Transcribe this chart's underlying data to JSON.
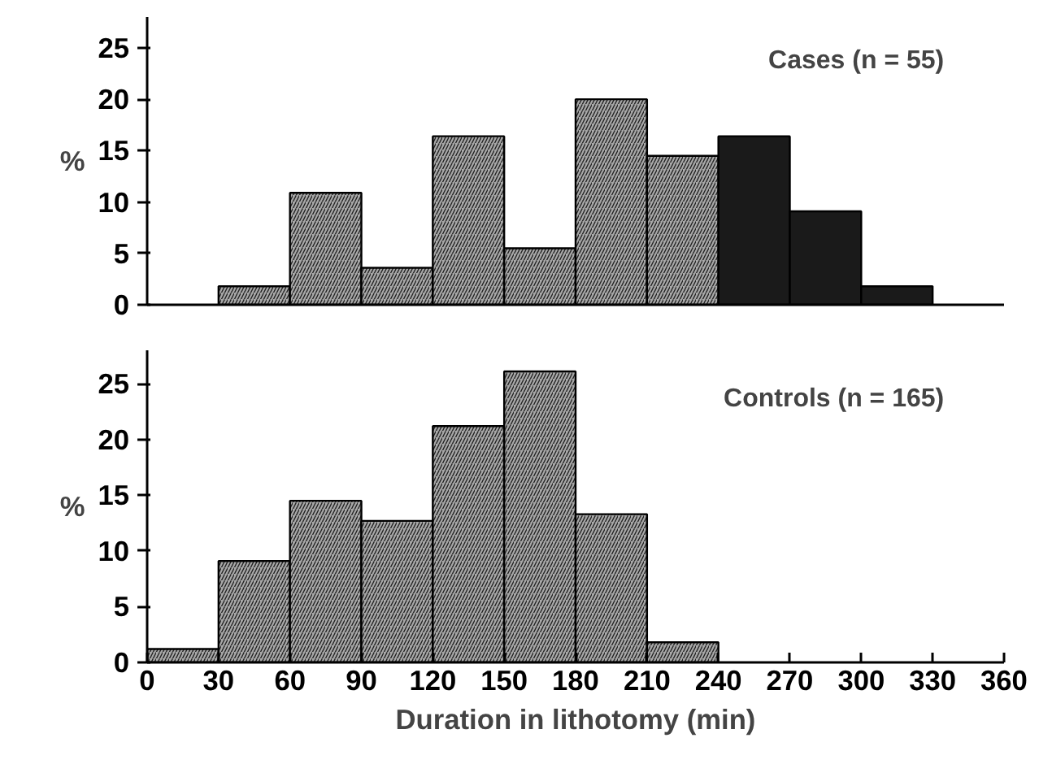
{
  "chart_data": [
    {
      "type": "histogram",
      "bins": [
        0,
        30,
        60,
        90,
        120,
        150,
        180,
        210,
        240,
        270,
        300,
        330,
        360
      ],
      "values": [
        0,
        1.8,
        10.9,
        3.6,
        16.4,
        5.5,
        20.0,
        14.5,
        16.4,
        9.1,
        1.8,
        0
      ],
      "colors": [
        "#a8a8a8",
        "#a8a8a8",
        "#a8a8a8",
        "#a8a8a8",
        "#a8a8a8",
        "#a8a8a8",
        "#a8a8a8",
        "#a8a8a8",
        "#1a1a1a",
        "#1a1a1a",
        "#1a1a1a",
        "#1a1a1a"
      ],
      "ylabel": "%",
      "annotations": [
        "Cases (n = 55)"
      ],
      "xlim": [
        0,
        360
      ],
      "ylim": [
        0,
        28
      ],
      "yticks": [
        0,
        5,
        10,
        15,
        20,
        25
      ],
      "grid": false
    },
    {
      "type": "histogram",
      "bins": [
        0,
        30,
        60,
        90,
        120,
        150,
        180,
        210,
        240,
        270,
        300,
        330,
        360
      ],
      "values": [
        1.2,
        9.1,
        14.5,
        12.7,
        21.2,
        26.1,
        13.3,
        1.8,
        0,
        0,
        0,
        0
      ],
      "colors": [
        "#a8a8a8",
        "#a8a8a8",
        "#a8a8a8",
        "#a8a8a8",
        "#a8a8a8",
        "#a8a8a8",
        "#a8a8a8",
        "#a8a8a8",
        "#a8a8a8",
        "#a8a8a8",
        "#a8a8a8",
        "#a8a8a8"
      ],
      "ylabel": "%",
      "xlabel": "Duration in lithotomy (min)",
      "annotations": [
        "Controls (n = 165)"
      ],
      "xlim": [
        0,
        360
      ],
      "ylim": [
        0,
        28
      ],
      "xticks": [
        0,
        30,
        60,
        90,
        120,
        150,
        180,
        210,
        240,
        270,
        300,
        330,
        360
      ],
      "yticks": [
        0,
        5,
        10,
        15,
        20,
        25
      ],
      "grid": false
    }
  ]
}
